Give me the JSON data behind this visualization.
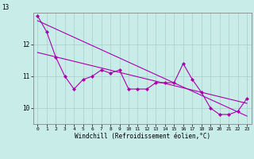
{
  "title": "",
  "xlabel": "Windchill (Refroidissement éolien,°C)",
  "background_color": "#c8ece8",
  "grid_color": "#aacccc",
  "line_color": "#aa00aa",
  "x_hours": [
    0,
    1,
    2,
    3,
    4,
    5,
    6,
    7,
    8,
    9,
    10,
    11,
    12,
    13,
    14,
    15,
    16,
    17,
    18,
    19,
    20,
    21,
    22,
    23
  ],
  "series1": [
    12.9,
    12.4,
    11.6,
    11.0,
    10.6,
    10.9,
    11.0,
    11.2,
    11.1,
    11.2,
    10.6,
    10.6,
    10.6,
    10.8,
    10.8,
    10.8,
    11.4,
    10.9,
    10.5,
    10.0,
    9.8,
    9.8,
    9.9,
    10.3
  ],
  "trend1": [
    12.75,
    9.75
  ],
  "trend2": [
    11.75,
    10.15
  ],
  "ylim": [
    9.5,
    13.0
  ],
  "yticks": [
    10,
    11,
    12
  ],
  "xticks": [
    0,
    1,
    2,
    3,
    4,
    5,
    6,
    7,
    8,
    9,
    10,
    11,
    12,
    13,
    14,
    15,
    16,
    17,
    18,
    19,
    20,
    21,
    22,
    23
  ]
}
